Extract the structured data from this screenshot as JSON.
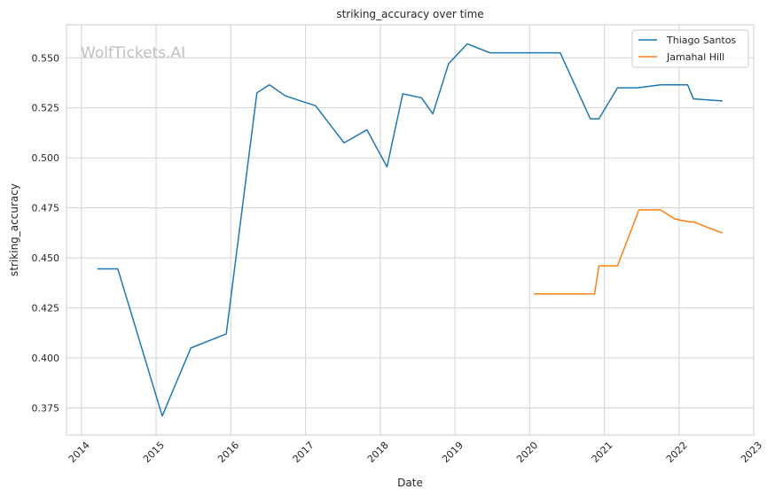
{
  "chart_data": {
    "type": "line",
    "title": "striking_accuracy over time",
    "xlabel": "Date",
    "ylabel": "striking_accuracy",
    "watermark": "WolfTickets.AI",
    "x_ticks": [
      "2014",
      "2015",
      "2016",
      "2017",
      "2018",
      "2019",
      "2020",
      "2021",
      "2022",
      "2023"
    ],
    "y_ticks": [
      "0.375",
      "0.400",
      "0.425",
      "0.450",
      "0.475",
      "0.500",
      "0.525",
      "0.550"
    ],
    "xlim": [
      "2013-10-20",
      "2023-01-01"
    ],
    "ylim": [
      0.3615,
      0.5665
    ],
    "grid": true,
    "legend_position": "top-right",
    "series": [
      {
        "name": "Thiago Santos",
        "color": "#1f77b4",
        "points": [
          [
            "2014-03-22",
            0.4445
          ],
          [
            "2014-06-28",
            0.4445
          ],
          [
            "2015-01-31",
            0.371
          ],
          [
            "2015-06-20",
            0.405
          ],
          [
            "2015-12-10",
            0.412
          ],
          [
            "2016-05-08",
            0.5325
          ],
          [
            "2016-07-08",
            0.5365
          ],
          [
            "2016-09-24",
            0.531
          ],
          [
            "2017-02-19",
            0.526
          ],
          [
            "2017-07-08",
            0.5075
          ],
          [
            "2017-10-28",
            0.514
          ],
          [
            "2018-02-03",
            0.4955
          ],
          [
            "2018-04-21",
            0.532
          ],
          [
            "2018-07-22",
            0.53
          ],
          [
            "2018-09-15",
            0.522
          ],
          [
            "2018-12-01",
            0.547
          ],
          [
            "2019-03-02",
            0.557
          ],
          [
            "2019-06-22",
            0.5525
          ],
          [
            "2019-11-02",
            0.5525
          ],
          [
            "2020-05-30",
            0.5525
          ],
          [
            "2020-10-24",
            0.5195
          ],
          [
            "2020-12-05",
            0.5195
          ],
          [
            "2021-03-06",
            0.535
          ],
          [
            "2021-06-12",
            0.535
          ],
          [
            "2021-10-02",
            0.5365
          ],
          [
            "2022-02-12",
            0.5365
          ],
          [
            "2022-03-12",
            0.5295
          ],
          [
            "2022-07-30",
            0.5285
          ]
        ]
      },
      {
        "name": "Jamahal Hill",
        "color": "#ff7f0e",
        "points": [
          [
            "2020-01-25",
            0.432
          ],
          [
            "2020-11-14",
            0.432
          ],
          [
            "2020-12-05",
            0.446
          ],
          [
            "2021-03-06",
            0.446
          ],
          [
            "2021-06-19",
            0.474
          ],
          [
            "2021-10-02",
            0.474
          ],
          [
            "2021-12-11",
            0.4695
          ],
          [
            "2022-02-19",
            0.468
          ],
          [
            "2022-03-12",
            0.468
          ],
          [
            "2022-07-30",
            0.4625
          ]
        ]
      }
    ]
  }
}
